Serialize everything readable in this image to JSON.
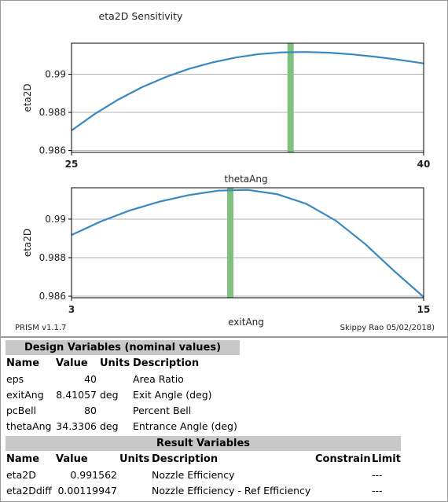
{
  "chart_data": [
    {
      "type": "line",
      "title": "eta2D Sensitivity",
      "xlabel": "thetaAng",
      "ylabel": "eta2D",
      "xlim": [
        25,
        40
      ],
      "ylim": [
        0.9859,
        0.99163
      ],
      "xticks": [
        "25",
        "40"
      ],
      "yticks": [
        {
          "v": 0.986,
          "label": "0.986"
        },
        {
          "v": 0.988,
          "label": "0.988"
        },
        {
          "v": 0.99,
          "label": "0.99"
        }
      ],
      "grid": true,
      "series": [
        {
          "color": "#3a88c0",
          "x": [
            25,
            26,
            27,
            28,
            29,
            30,
            31,
            32,
            33,
            34,
            35,
            36,
            37,
            38,
            39,
            40
          ],
          "y": [
            0.98705,
            0.98793,
            0.98868,
            0.98932,
            0.98985,
            0.99028,
            0.99062,
            0.99088,
            0.99106,
            0.99115,
            0.99117,
            0.99113,
            0.99104,
            0.99091,
            0.99075,
            0.99057
          ]
        }
      ],
      "marker": {
        "x": 34.3306,
        "color": "#80c080"
      }
    },
    {
      "type": "line",
      "title": "",
      "xlabel": "exitAng",
      "ylabel": "eta2D",
      "xlim": [
        3,
        15
      ],
      "ylim": [
        0.98592,
        0.99163
      ],
      "xticks": [
        "3",
        "15"
      ],
      "yticks": [
        {
          "v": 0.986,
          "label": "0.986"
        },
        {
          "v": 0.988,
          "label": "0.988"
        },
        {
          "v": 0.99,
          "label": "0.99"
        }
      ],
      "grid": true,
      "series": [
        {
          "color": "#3a88c0",
          "x": [
            3,
            4,
            5,
            6,
            7,
            8,
            9,
            10,
            11,
            12,
            13,
            14,
            15
          ],
          "y": [
            0.98918,
            0.98988,
            0.99046,
            0.99091,
            0.99125,
            0.99148,
            0.99152,
            0.9913,
            0.9908,
            0.98993,
            0.98872,
            0.9873,
            0.98596
          ]
        }
      ],
      "marker": {
        "x": 8.41057,
        "color": "#80c080"
      }
    }
  ],
  "footer": {
    "version": "PRISM v1.1.7",
    "credit": "Skippy Rao 05/02/2018)"
  },
  "design": {
    "title": "Design Variables (nominal values)",
    "headers": {
      "name": "Name",
      "value": "Value",
      "units": "Units",
      "desc": "Description"
    },
    "rows": [
      {
        "name": "eps",
        "value": "40",
        "units": "",
        "desc": "Area Ratio"
      },
      {
        "name": "exitAng",
        "value": "8.41057",
        "units": "deg",
        "desc": "Exit Angle (deg)"
      },
      {
        "name": "pcBell",
        "value": "80",
        "units": "",
        "desc": "Percent Bell"
      },
      {
        "name": "thetaAng",
        "value": "34.3306",
        "units": "deg",
        "desc": "Entrance Angle (deg)"
      }
    ]
  },
  "results": {
    "title": "Result Variables",
    "headers": {
      "name": "Name",
      "value": "Value",
      "units": "Units",
      "desc": "Description",
      "constrain": "Constrain",
      "limit": "Limit"
    },
    "rows": [
      {
        "name": "eta2D",
        "value": "0.991562",
        "units": "",
        "desc": "Nozzle Efficiency",
        "limit": "---"
      },
      {
        "name": "eta2Ddiff",
        "value": "0.00119947",
        "units": "",
        "desc": "Nozzle Efficiency - Ref Efficiency",
        "limit": "---"
      }
    ]
  }
}
